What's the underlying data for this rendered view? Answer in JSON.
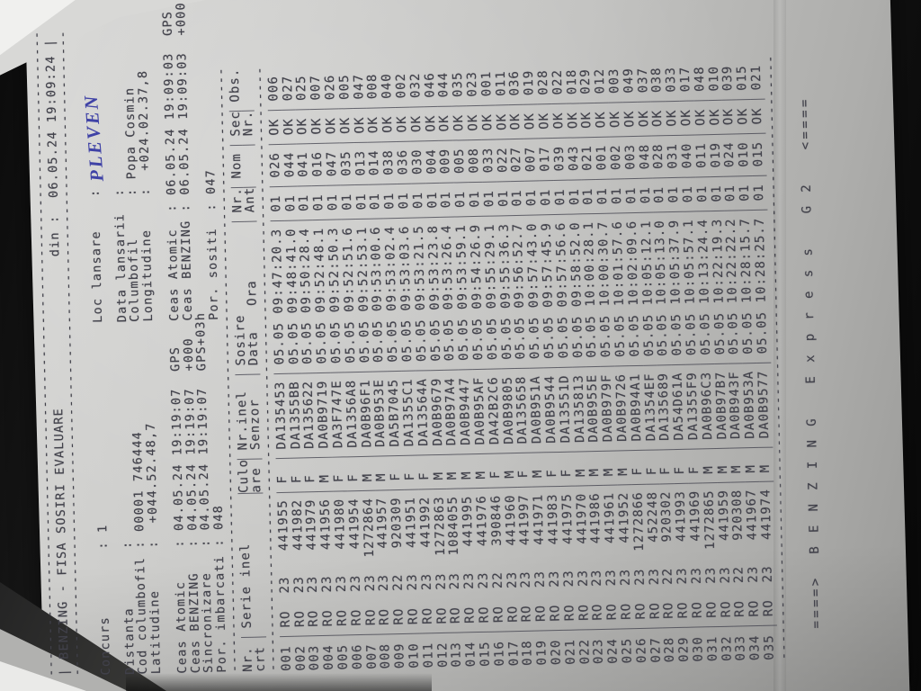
{
  "colors": {
    "background": "#161616",
    "paper": "#c6c6c4",
    "ink": "#41414a",
    "handwriting": "#3f42a6"
  },
  "document": {
    "border_dash_len": 77,
    "title_bar": {
      "title_left": "| BENZING - FISA SOSIRI EVALUARE",
      "din": "din :  06.05.24 19:09:24",
      "right_bar": "|"
    },
    "info_lines": [
      {
        "left": "",
        "right": ""
      },
      {
        "left": "Concurs        : 1",
        "right": "Loc lansare    :",
        "handwritten": "PLEVEN"
      },
      {
        "left": "",
        "right": ""
      },
      {
        "left": "Distanta       :",
        "right": "Data lansarii  :"
      },
      {
        "left": "Cod columbofil : 00001 746444",
        "right": "Columbofil     : Popa Cosmin"
      },
      {
        "left": "Latitudine     :  +044.52.48,7",
        "right": "Longitudine    :  +024.02.37,8"
      },
      {
        "left": "",
        "right": ""
      },
      {
        "left": "Ceas Atomic    : 04.05.24 19:19:07  GPS",
        "right": "Ceas Atomic  : 06.05.24 19:09:03  GPS"
      },
      {
        "left": "Ceas BENZING   : 04.05.24 19:19:07  +000",
        "right": "Ceas BENZING : 06.05.24 19:09:03  +000"
      },
      {
        "left": "Sincronizare   : 04.05.24 19:19:07  GPS+03h",
        "right": ""
      },
      {
        "left": "Por. imbarcati : 048",
        "right": "Por. sositi  : 047"
      }
    ]
  },
  "table": {
    "dash_len": 71,
    "header1": [
      "Nr.",
      "Serie inel",
      "Culo",
      "Nr.inel",
      "Sosire",
      "Nr.",
      "Nom",
      "Sec",
      "Obs."
    ],
    "header2": [
      "crt",
      "",
      "are",
      "Senzor",
      "Data   Ora",
      "Ant",
      "",
      "Nr.",
      ""
    ],
    "rows": [
      [
        "001",
        "RO",
        "23",
        "441955",
        "F",
        "DA135453",
        "05.05",
        "09:47:20.3",
        "01",
        "026",
        "OK",
        "006"
      ],
      [
        "002",
        "RO",
        "23",
        "441982",
        "F",
        "DA1355BB",
        "05.05",
        "09:48:41.0",
        "01",
        "044",
        "OK",
        "027"
      ],
      [
        "003",
        "RO",
        "23",
        "441979",
        "F",
        "DA135622",
        "05.05",
        "09:50:28.4",
        "01",
        "041",
        "OK",
        "025"
      ],
      [
        "004",
        "RO",
        "23",
        "441956",
        "M",
        "DA0B9719",
        "05.05",
        "09:52:48.1",
        "01",
        "016",
        "OK",
        "007"
      ],
      [
        "005",
        "RO",
        "23",
        "441980",
        "F",
        "DA3F747E",
        "05.05",
        "09:52:50.3",
        "01",
        "047",
        "OK",
        "026"
      ],
      [
        "006",
        "RO",
        "23",
        "441954",
        "F",
        "DA1356A8",
        "05.05",
        "09:52:51.6",
        "01",
        "035",
        "OK",
        "005"
      ],
      [
        "007",
        "RO",
        "23",
        "1272864",
        "M",
        "DA0B96F1",
        "05.05",
        "09:52:53.1",
        "01",
        "013",
        "OK",
        "047"
      ],
      [
        "008",
        "RO",
        "23",
        "441957",
        "M",
        "DA0B953E",
        "05.05",
        "09:53:00.6",
        "01",
        "014",
        "OK",
        "008"
      ],
      [
        "009",
        "RO",
        "22",
        "920309",
        "F",
        "DA5B7045",
        "05.05",
        "09:53:02.4",
        "01",
        "038",
        "OK",
        "040"
      ],
      [
        "010",
        "RO",
        "23",
        "441951",
        "F",
        "DA1355C1",
        "05.05",
        "09:53:03.6",
        "01",
        "036",
        "OK",
        "002"
      ],
      [
        "011",
        "RO",
        "23",
        "441992",
        "F",
        "DA13564A",
        "05.05",
        "09:53:21.5",
        "01",
        "030",
        "OK",
        "032"
      ],
      [
        "012",
        "RO",
        "23",
        "1272863",
        "M",
        "DA0B9679",
        "05.05",
        "09:53:23.8",
        "01",
        "004",
        "OK",
        "046"
      ],
      [
        "013",
        "RO",
        "23",
        "1084055",
        "M",
        "DA0B97A4",
        "05.05",
        "09:53:26.4",
        "01",
        "009",
        "OK",
        "044"
      ],
      [
        "014",
        "RO",
        "23",
        "441995",
        "M",
        "DA0B9447",
        "05.05",
        "09:53:59.1",
        "01",
        "005",
        "OK",
        "035"
      ],
      [
        "015",
        "RO",
        "23",
        "441976",
        "M",
        "DA0B95AF",
        "05.05",
        "09:54:26.9",
        "01",
        "008",
        "OK",
        "023"
      ],
      [
        "016",
        "RO",
        "22",
        "390846",
        "F",
        "DA42B2C6",
        "05.05",
        "09:55:29.1",
        "01",
        "033",
        "OK",
        "001"
      ],
      [
        "017",
        "RO",
        "23",
        "441960",
        "M",
        "DA0B9805",
        "05.05",
        "09:55:36.3",
        "01",
        "022",
        "OK",
        "011"
      ],
      [
        "018",
        "RO",
        "23",
        "441997",
        "F",
        "DA135658",
        "05.05",
        "09:56:52.7",
        "01",
        "027",
        "OK",
        "036"
      ],
      [
        "019",
        "RO",
        "23",
        "441971",
        "M",
        "DA0B951A",
        "05.05",
        "09:57:43.0",
        "01",
        "007",
        "OK",
        "019"
      ],
      [
        "020",
        "RO",
        "23",
        "441983",
        "F",
        "DA0B9544",
        "05.05",
        "09:57:45.9",
        "01",
        "017",
        "OK",
        "028"
      ],
      [
        "021",
        "RO",
        "23",
        "441975",
        "F",
        "DA13551D",
        "05.05",
        "09:57:56.6",
        "01",
        "039",
        "OK",
        "022"
      ],
      [
        "022",
        "RO",
        "23",
        "441970",
        "M",
        "DA135813",
        "05.05",
        "09:58:52.0",
        "01",
        "043",
        "OK",
        "018"
      ],
      [
        "023",
        "RO",
        "23",
        "441986",
        "M",
        "DA0B955E",
        "05.05",
        "10:00:28.1",
        "01",
        "021",
        "OK",
        "029"
      ],
      [
        "024",
        "RO",
        "23",
        "441961",
        "M",
        "DA0B979F",
        "05.05",
        "10:00:30.7",
        "01",
        "001",
        "OK",
        "012"
      ],
      [
        "025",
        "RO",
        "23",
        "441952",
        "M",
        "DA0B9726",
        "05.05",
        "10:01:57.6",
        "01",
        "002",
        "OK",
        "003"
      ],
      [
        "026",
        "RO",
        "23",
        "1272866",
        "F",
        "DA0B94A1",
        "05.05",
        "10:02:09.6",
        "01",
        "003",
        "OK",
        "049"
      ],
      [
        "027",
        "RO",
        "23",
        "452248",
        "F",
        "DA1354EF",
        "05.05",
        "10:05:12.1",
        "01",
        "048",
        "OK",
        "037"
      ],
      [
        "028",
        "RO",
        "22",
        "920302",
        "F",
        "DA135689",
        "05.05",
        "10:05:13.0",
        "01",
        "028",
        "OK",
        "038"
      ],
      [
        "029",
        "RO",
        "23",
        "441993",
        "F",
        "DA54D61A",
        "05.05",
        "10:05:37.9",
        "01",
        "031",
        "OK",
        "033"
      ],
      [
        "030",
        "RO",
        "23",
        "441969",
        "F",
        "DA1355F9",
        "05.05",
        "10:05:57.1",
        "01",
        "040",
        "OK",
        "017"
      ],
      [
        "031",
        "RO",
        "23",
        "1272865",
        "M",
        "DA0B96C3",
        "05.05",
        "10:13:24.4",
        "01",
        "011",
        "OK",
        "048"
      ],
      [
        "032",
        "RO",
        "23",
        "441959",
        "M",
        "DA0B97B7",
        "05.05",
        "10:22:19.3",
        "01",
        "019",
        "OK",
        "010"
      ],
      [
        "033",
        "RO",
        "22",
        "920308",
        "M",
        "DA0B943F",
        "05.05",
        "10:22:22.2",
        "01",
        "024",
        "OK",
        "039"
      ],
      [
        "034",
        "RO",
        "23",
        "441967",
        "M",
        "DA0B953A",
        "05.05",
        "10:28:15.7",
        "01",
        "010",
        "OK",
        "015"
      ],
      [
        "035",
        "RO",
        "23",
        "441974",
        "M",
        "DA0B9577",
        "05.05",
        "10:28:25.7",
        "01",
        "015",
        "OK",
        "021"
      ]
    ]
  },
  "footer": {
    "text": "====>  B E N Z I N G   E x p r e s s   G 2   <===="
  }
}
